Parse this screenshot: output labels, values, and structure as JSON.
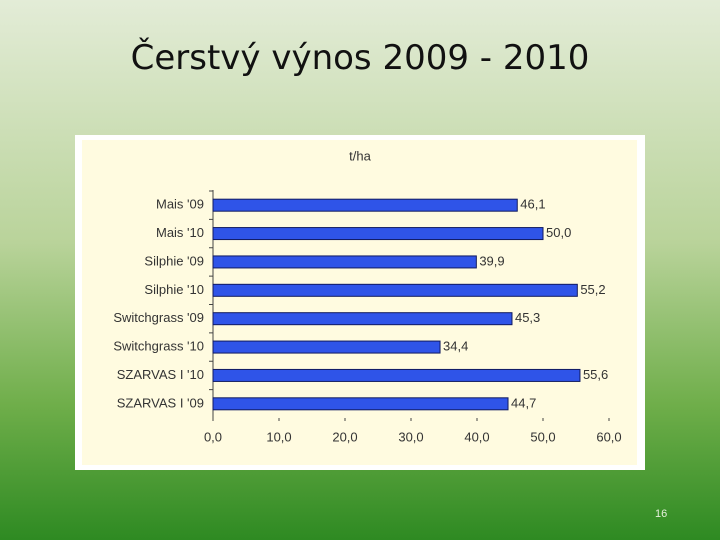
{
  "title": "Čerstvý výnos 2009 - 2010",
  "page_number": "16",
  "chart_data": {
    "type": "hbar",
    "axis_label": "t/ha",
    "categories": [
      "Mais '09",
      "Mais '10",
      "Silphie '09",
      "Silphie '10",
      "Switchgrass '09",
      "Switchgrass '10",
      "SZARVAS I '10",
      "SZARVAS I '09"
    ],
    "values": [
      46.1,
      50.0,
      39.9,
      55.2,
      45.3,
      34.4,
      55.6,
      44.7
    ],
    "value_labels": [
      "46,1",
      "50,0",
      "39,9",
      "55,2",
      "45,3",
      "34,4",
      "55,6",
      "44,7"
    ],
    "color": "#2f54e8",
    "xlim": [
      0,
      60
    ],
    "xticks": [
      {
        "value": 0,
        "label": "0,0"
      },
      {
        "value": 10,
        "label": "10,0"
      },
      {
        "value": 20,
        "label": "20,0"
      },
      {
        "value": 30,
        "label": "30,0"
      },
      {
        "value": 40,
        "label": "40,0"
      },
      {
        "value": 50,
        "label": "50,0"
      },
      {
        "value": 60,
        "label": "60,0"
      }
    ]
  }
}
